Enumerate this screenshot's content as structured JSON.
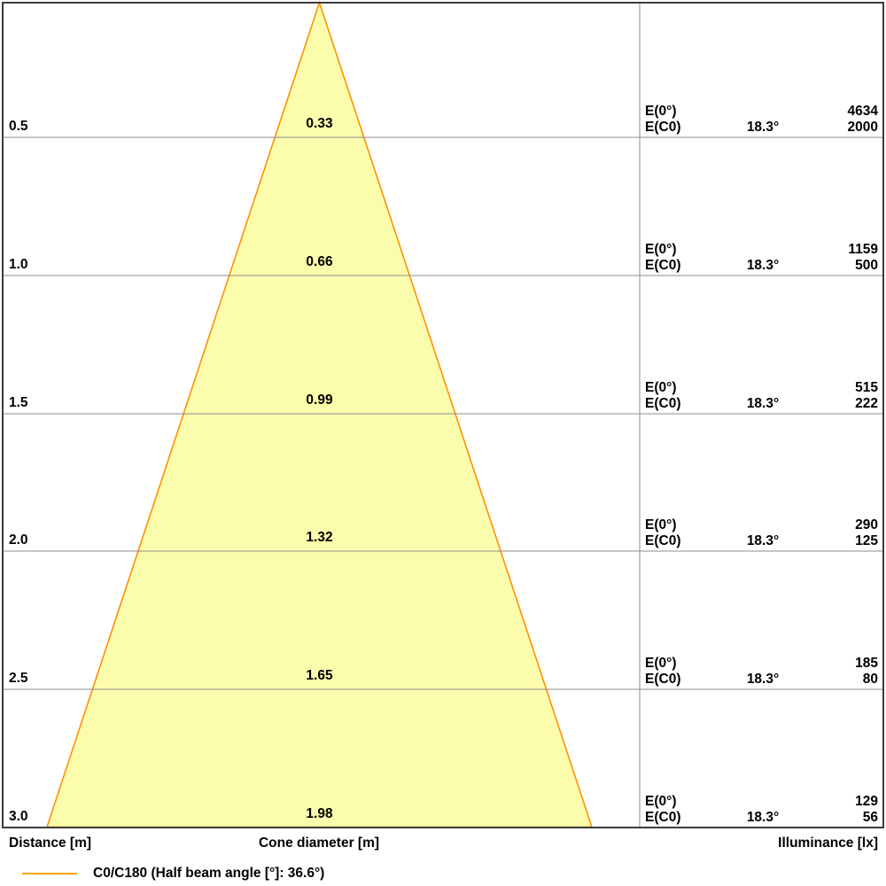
{
  "labels": {
    "distance_axis": "Distance [m]",
    "cone_diameter_axis": "Cone diameter [m]",
    "illuminance_axis": "Illuminance [lx]"
  },
  "legend": {
    "text": "C0/C180 (Half beam angle [°]: 36.6°)",
    "line_color": "#FFA500"
  },
  "colors": {
    "background": "#FFFFFF",
    "frame": "#3C3C3C",
    "grid": "#8C8C8C",
    "cone_fill": "#FCFCAD",
    "cone_stroke": "#FF9100",
    "text": "#000000"
  },
  "rows": [
    {
      "distance": "0.5",
      "cone_diameter": "0.33",
      "e0_label": "E(0°)",
      "e0_value": "4634",
      "ec0_label": "E(C0)",
      "beam_angle": "18.3°",
      "ec0_value": "2000"
    },
    {
      "distance": "1.0",
      "cone_diameter": "0.66",
      "e0_label": "E(0°)",
      "e0_value": "1159",
      "ec0_label": "E(C0)",
      "beam_angle": "18.3°",
      "ec0_value": "500"
    },
    {
      "distance": "1.5",
      "cone_diameter": "0.99",
      "e0_label": "E(0°)",
      "e0_value": "515",
      "ec0_label": "E(C0)",
      "beam_angle": "18.3°",
      "ec0_value": "222"
    },
    {
      "distance": "2.0",
      "cone_diameter": "1.32",
      "e0_label": "E(0°)",
      "e0_value": "290",
      "ec0_label": "E(C0)",
      "beam_angle": "18.3°",
      "ec0_value": "125"
    },
    {
      "distance": "2.5",
      "cone_diameter": "1.65",
      "e0_label": "E(0°)",
      "e0_value": "185",
      "ec0_label": "E(C0)",
      "beam_angle": "18.3°",
      "ec0_value": "80"
    },
    {
      "distance": "3.0",
      "cone_diameter": "1.98",
      "e0_label": "E(0°)",
      "e0_value": "129",
      "ec0_label": "E(C0)",
      "beam_angle": "18.3°",
      "ec0_value": "56"
    }
  ],
  "chart_data": {
    "type": "area",
    "title": "Light cone diagram (beam spread vs. distance)",
    "x": [
      0.5,
      1.0,
      1.5,
      2.0,
      2.5,
      3.0
    ],
    "xlabel": "Distance [m]",
    "series": [
      {
        "name": "Cone diameter [m]",
        "values": [
          0.33,
          0.66,
          0.99,
          1.32,
          1.65,
          1.98
        ]
      },
      {
        "name": "E(0°) Illuminance [lx]",
        "values": [
          4634,
          1159,
          515,
          290,
          185,
          129
        ]
      },
      {
        "name": "E(C0) Illuminance [lx]",
        "values": [
          2000,
          500,
          222,
          125,
          80,
          56
        ]
      }
    ],
    "half_beam_angle_deg": 18.3,
    "full_beam_angle_deg": 36.6,
    "beam_angle_display": "18.3°",
    "legend_entries": [
      "C0/C180 (Half beam angle [°]: 36.6°)"
    ],
    "legend_position": "bottom-left",
    "grid": true
  }
}
